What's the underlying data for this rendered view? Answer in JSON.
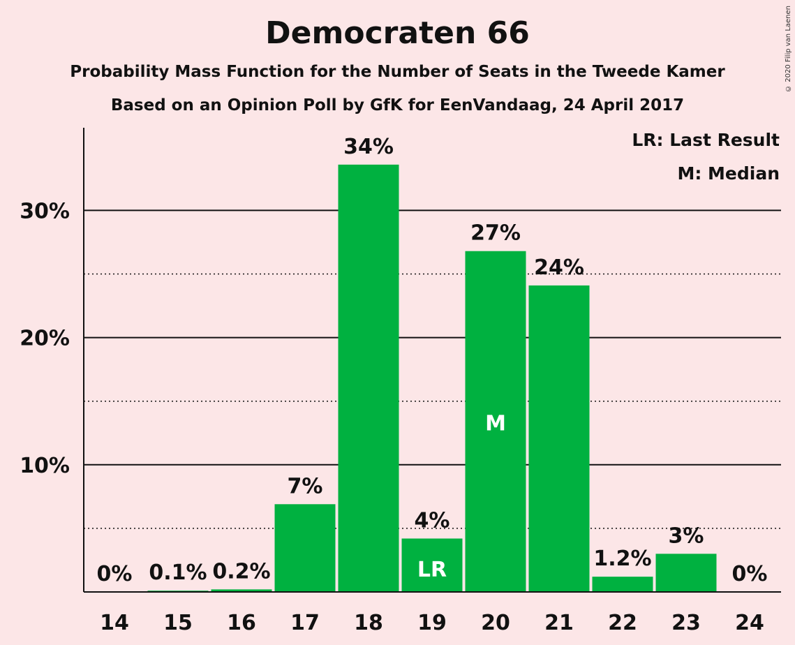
{
  "title": "Democraten 66",
  "subtitle1": "Probability Mass Function for the Number of Seats in the Tweede Kamer",
  "subtitle2": "Based on an Opinion Poll by GfK for EenVandaag, 24 April 2017",
  "copyright": "© 2020 Filip van Laenen",
  "legend": {
    "last_result": "LR: Last Result",
    "median": "M: Median"
  },
  "colors": {
    "background": "#fce6e7",
    "bar": "#00b140"
  },
  "chart_data": {
    "type": "bar",
    "categories": [
      "14",
      "15",
      "16",
      "17",
      "18",
      "19",
      "20",
      "21",
      "22",
      "23",
      "24"
    ],
    "values": [
      0,
      0.1,
      0.2,
      6.9,
      33.6,
      4.2,
      26.8,
      24.1,
      1.2,
      3.0,
      0
    ],
    "data_labels": [
      "0%",
      "0.1%",
      "0.2%",
      "7%",
      "34%",
      "4%",
      "27%",
      "24%",
      "1.2%",
      "3%",
      "0%"
    ],
    "bar_markers": {
      "19": "LR",
      "20": "M"
    },
    "y_ticks": [
      10,
      20,
      30
    ],
    "y_tick_labels": [
      "10%",
      "20%",
      "30%"
    ],
    "minor_gridlines": [
      5,
      15,
      25
    ],
    "ylim": [
      0,
      36.5
    ],
    "grid": true,
    "legend_position": "top-right"
  }
}
